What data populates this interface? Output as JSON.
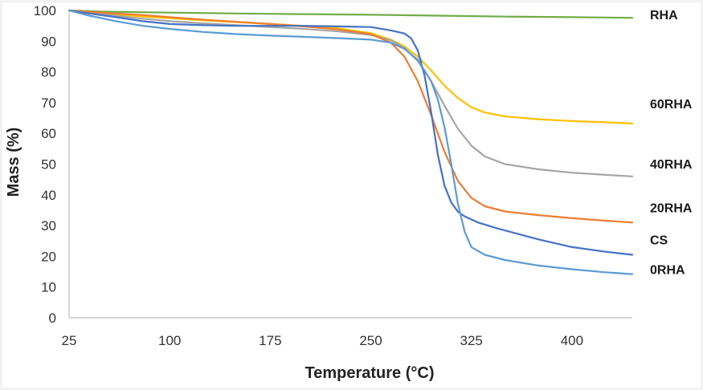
{
  "chart_data": {
    "type": "line",
    "title": "",
    "xlabel": "Temperature (°C)",
    "ylabel": "Mass (%)",
    "xlim": [
      25,
      445
    ],
    "ylim": [
      0,
      100
    ],
    "xticks": [
      25,
      100,
      175,
      250,
      325,
      400
    ],
    "yticks": [
      0,
      10,
      20,
      30,
      40,
      50,
      60,
      70,
      80,
      90,
      100
    ],
    "grid": false,
    "series": [
      {
        "name": "RHA",
        "color": "#70ad47",
        "x": [
          25,
          50,
          100,
          150,
          200,
          250,
          300,
          350,
          400,
          445
        ],
        "y": [
          100,
          99.6,
          99.3,
          99.0,
          98.8,
          98.6,
          98.3,
          98.0,
          97.8,
          97.6
        ]
      },
      {
        "name": "60RHA",
        "color": "#ffc000",
        "x": [
          25,
          40,
          60,
          80,
          100,
          125,
          150,
          175,
          200,
          225,
          250,
          265,
          275,
          285,
          295,
          305,
          315,
          325,
          335,
          350,
          375,
          400,
          425,
          445
        ],
        "y": [
          100,
          99.5,
          98.7,
          98.0,
          97.5,
          96.8,
          96.2,
          95.6,
          95.0,
          94.2,
          92.6,
          90.5,
          88.3,
          85.0,
          80.5,
          75.5,
          71.5,
          68.5,
          66.8,
          65.5,
          64.6,
          64.0,
          63.6,
          63.2
        ]
      },
      {
        "name": "40RHA",
        "color": "#a5a5a5",
        "x": [
          25,
          40,
          60,
          80,
          100,
          125,
          150,
          175,
          200,
          225,
          250,
          265,
          275,
          285,
          295,
          305,
          315,
          325,
          335,
          350,
          375,
          400,
          425,
          445
        ],
        "y": [
          100,
          99.3,
          98.3,
          97.3,
          96.5,
          95.8,
          95.2,
          94.6,
          94.0,
          93.2,
          92.0,
          90.3,
          87.8,
          83.5,
          77.0,
          69.0,
          61.5,
          56.0,
          52.5,
          50.0,
          48.3,
          47.2,
          46.5,
          46.0
        ]
      },
      {
        "name": "20RHA",
        "color": "#ed7d31",
        "x": [
          25,
          40,
          60,
          80,
          100,
          125,
          150,
          175,
          200,
          225,
          250,
          265,
          275,
          285,
          295,
          305,
          315,
          325,
          335,
          350,
          375,
          400,
          425,
          445
        ],
        "y": [
          100,
          99.5,
          99.0,
          98.5,
          97.8,
          97.0,
          96.3,
          95.6,
          94.8,
          93.8,
          92.3,
          89.5,
          85.0,
          77.0,
          66.0,
          54.0,
          44.5,
          39.0,
          36.3,
          34.6,
          33.4,
          32.4,
          31.6,
          31.0
        ]
      },
      {
        "name": "CS",
        "color": "#4472c4",
        "x": [
          25,
          40,
          60,
          80,
          100,
          125,
          150,
          175,
          200,
          225,
          250,
          265,
          275,
          280,
          285,
          290,
          295,
          300,
          305,
          310,
          315,
          320,
          330,
          345,
          375,
          400,
          425,
          445
        ],
        "y": [
          100,
          99.0,
          97.8,
          96.5,
          95.6,
          95.2,
          95.0,
          95.0,
          95.0,
          94.8,
          94.6,
          93.5,
          92.5,
          91.0,
          87.0,
          79.0,
          67.0,
          53.0,
          43.0,
          37.5,
          34.5,
          33.0,
          31.0,
          29.0,
          25.5,
          23.0,
          21.5,
          20.5
        ]
      },
      {
        "name": "0RHA",
        "color": "#5b9bd5",
        "x": [
          25,
          40,
          60,
          80,
          100,
          125,
          150,
          175,
          200,
          225,
          250,
          265,
          275,
          285,
          295,
          300,
          305,
          310,
          315,
          320,
          325,
          335,
          350,
          375,
          400,
          425,
          445
        ],
        "y": [
          100,
          98.3,
          96.5,
          95.0,
          94.0,
          93.0,
          92.3,
          91.8,
          91.4,
          91.0,
          90.5,
          89.5,
          87.5,
          84.0,
          77.0,
          71.0,
          62.0,
          50.0,
          37.0,
          28.0,
          23.0,
          20.5,
          18.8,
          17.0,
          15.8,
          14.8,
          14.2
        ]
      }
    ]
  }
}
